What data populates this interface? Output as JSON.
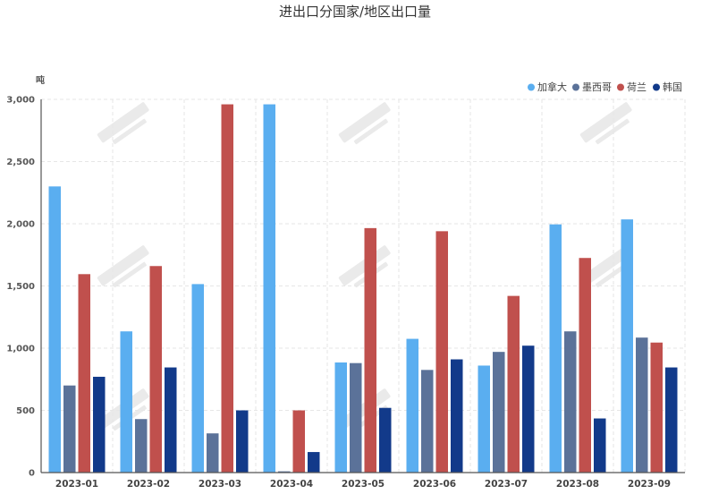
{
  "chart_data": {
    "type": "bar",
    "title": "进出口分国家/地区出口量",
    "ylabel": "吨",
    "ylim": [
      0,
      3000
    ],
    "yticks": [
      0,
      500,
      1000,
      1500,
      2000,
      2500,
      3000
    ],
    "ytick_labels": [
      "0",
      "500",
      "1,000",
      "1,500",
      "2,000",
      "2,500",
      "3,000"
    ],
    "grid": true,
    "legend_position": "top-right",
    "categories": [
      "2023-01",
      "2023-02",
      "2023-03",
      "2023-04",
      "2023-05",
      "2023-06",
      "2023-07",
      "2023-08",
      "2023-09"
    ],
    "series": [
      {
        "name": "加拿大",
        "color": "#5aaef0",
        "values": [
          2300,
          1135,
          1515,
          2960,
          885,
          1075,
          860,
          1995,
          2035
        ]
      },
      {
        "name": "墨西哥",
        "color": "#5b7299",
        "values": [
          700,
          430,
          315,
          10,
          880,
          825,
          970,
          1135,
          1085
        ]
      },
      {
        "name": "荷兰",
        "color": "#c0504d",
        "values": [
          1595,
          1660,
          2960,
          500,
          1965,
          1940,
          1420,
          1725,
          1045
        ]
      },
      {
        "name": "韩国",
        "color": "#123a8a",
        "values": [
          770,
          845,
          500,
          165,
          520,
          910,
          1020,
          435,
          845
        ]
      }
    ]
  }
}
